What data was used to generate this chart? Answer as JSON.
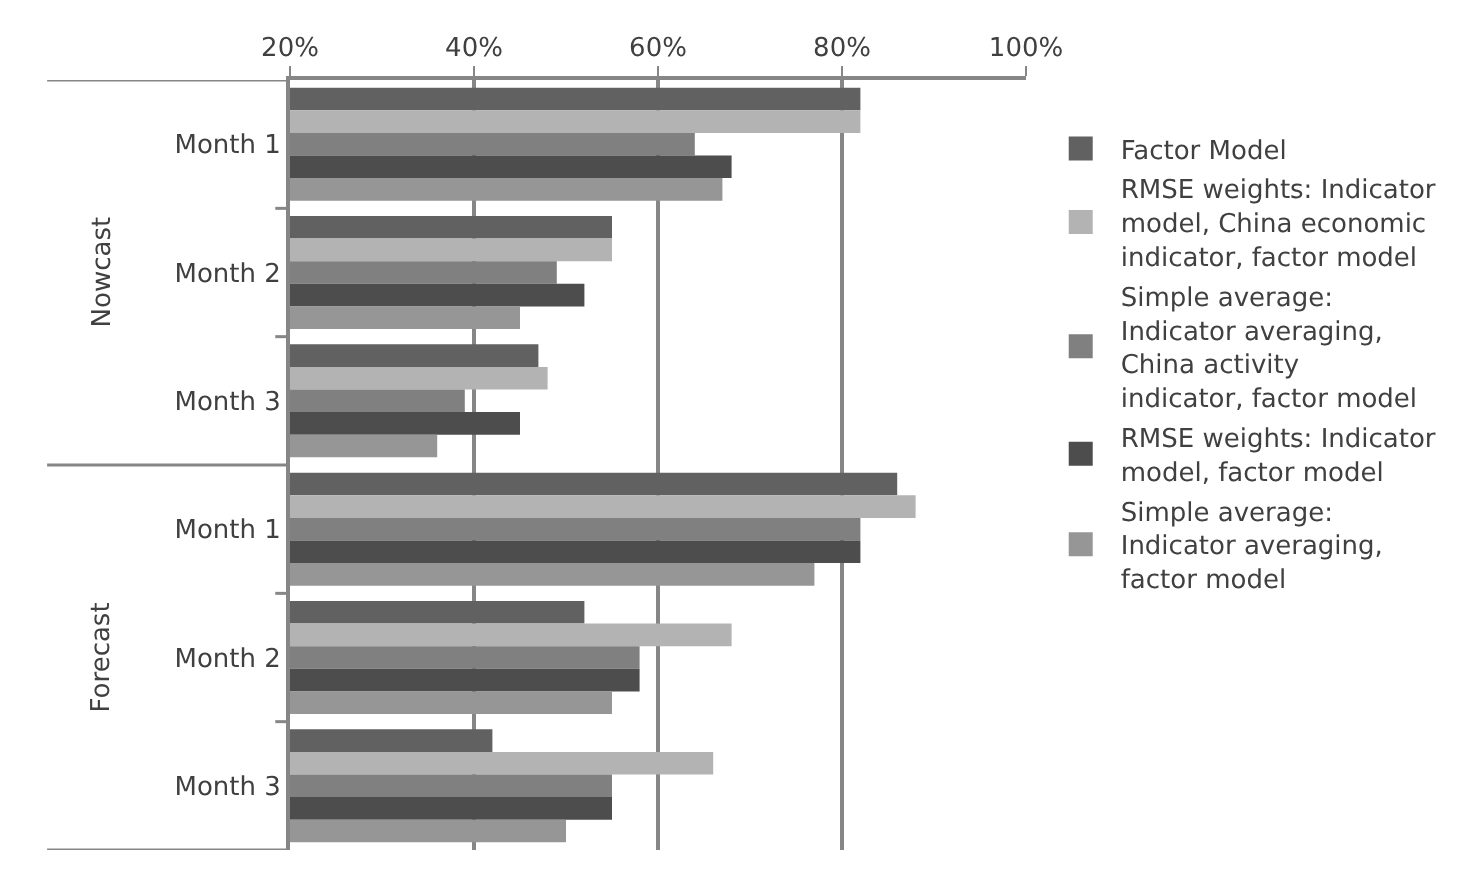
{
  "chart_data": {
    "type": "bar",
    "orientation": "horizontal",
    "categories": [
      "Month 1",
      "Month 2",
      "Month 3",
      "Month 1",
      "Month 2",
      "Month 3"
    ],
    "annotations": [
      "Nowcast",
      "Forecast"
    ],
    "xlim": [
      20,
      100
    ],
    "xticks": [
      {
        "value": 20,
        "label": "20%"
      },
      {
        "value": 40,
        "label": "40%"
      },
      {
        "value": 60,
        "label": "60%"
      },
      {
        "value": 80,
        "label": "80%"
      },
      {
        "value": 100,
        "label": "100%"
      }
    ],
    "grid": "x",
    "legend": "right",
    "series": [
      {
        "name": "Factor Model",
        "color": "#616161",
        "values": [
          82,
          55,
          47,
          86,
          52,
          42
        ]
      },
      {
        "name": "RMSE weights: Indicator model, China economic indicator, factor model",
        "color": "#b3b3b3",
        "values": [
          82,
          55,
          48,
          88,
          68,
          66
        ]
      },
      {
        "name": "Simple average: Indicator averaging, China activity indicator, factor model",
        "color": "#808080",
        "values": [
          64,
          49,
          39,
          82,
          58,
          55
        ]
      },
      {
        "name": "RMSE weights: Indicator model, factor model",
        "color": "#4d4d4d",
        "values": [
          68,
          52,
          45,
          82,
          58,
          55
        ]
      },
      {
        "name": "Simple average: Indicator averaging, factor model",
        "color": "#969696",
        "values": [
          67,
          45,
          36,
          77,
          55,
          50
        ]
      }
    ]
  }
}
